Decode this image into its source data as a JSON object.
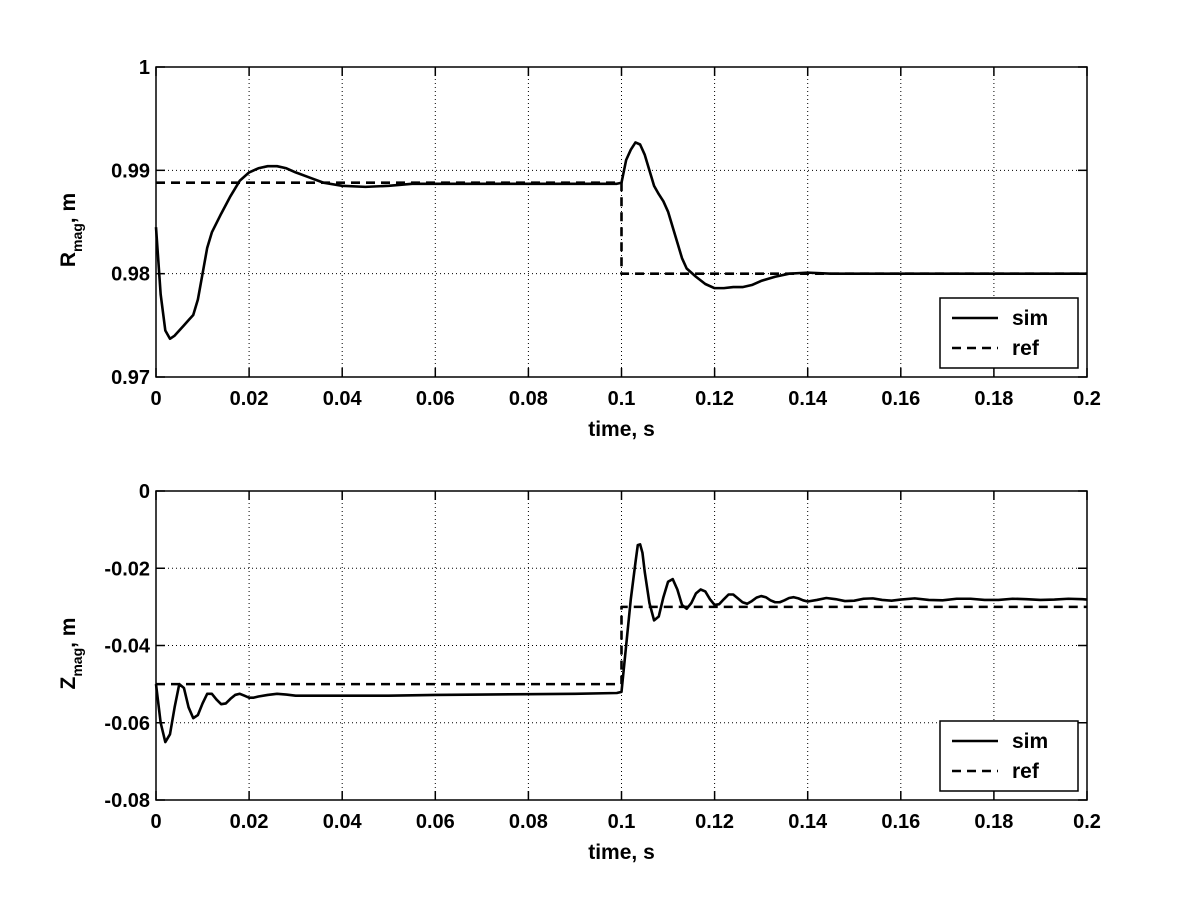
{
  "chart_data": [
    {
      "type": "line",
      "xlabel": "time, s",
      "ylabel": {
        "main": "R",
        "sub": "mag",
        "unit": ", m"
      },
      "xlim": [
        0,
        0.2
      ],
      "ylim": [
        0.97,
        1.0
      ],
      "xticks": [
        0,
        0.02,
        0.04,
        0.06,
        0.08,
        0.1,
        0.12,
        0.14,
        0.16,
        0.18,
        0.2
      ],
      "xtick_labels": [
        "0",
        "0.02",
        "0.04",
        "0.06",
        "0.08",
        "0.1",
        "0.12",
        "0.14",
        "0.16",
        "0.18",
        "0.2"
      ],
      "yticks": [
        0.97,
        0.98,
        0.99,
        1.0
      ],
      "ytick_labels": [
        "0.97",
        "0.98",
        "0.99",
        "1"
      ],
      "grid": true,
      "legend_position": "bottom-right",
      "series": [
        {
          "name": "sim",
          "style": "solid",
          "points": [
            [
              0,
              0.9845
            ],
            [
              0.001,
              0.978
            ],
            [
              0.002,
              0.9745
            ],
            [
              0.003,
              0.9737
            ],
            [
              0.004,
              0.974
            ],
            [
              0.005,
              0.9745
            ],
            [
              0.006,
              0.975
            ],
            [
              0.007,
              0.9755
            ],
            [
              0.008,
              0.976
            ],
            [
              0.009,
              0.9775
            ],
            [
              0.01,
              0.98
            ],
            [
              0.011,
              0.9825
            ],
            [
              0.012,
              0.984
            ],
            [
              0.014,
              0.9858
            ],
            [
              0.016,
              0.9875
            ],
            [
              0.018,
              0.989
            ],
            [
              0.02,
              0.9898
            ],
            [
              0.022,
              0.9902
            ],
            [
              0.024,
              0.9904
            ],
            [
              0.026,
              0.9904
            ],
            [
              0.028,
              0.9902
            ],
            [
              0.03,
              0.9898
            ],
            [
              0.033,
              0.9893
            ],
            [
              0.036,
              0.9888
            ],
            [
              0.04,
              0.9885
            ],
            [
              0.045,
              0.9884
            ],
            [
              0.05,
              0.9885
            ],
            [
              0.055,
              0.9887
            ],
            [
              0.06,
              0.9887
            ],
            [
              0.07,
              0.9887
            ],
            [
              0.08,
              0.9887
            ],
            [
              0.09,
              0.9887
            ],
            [
              0.099,
              0.9887
            ],
            [
              0.1,
              0.9888
            ],
            [
              0.101,
              0.991
            ],
            [
              0.102,
              0.992
            ],
            [
              0.103,
              0.9927
            ],
            [
              0.104,
              0.9925
            ],
            [
              0.105,
              0.9915
            ],
            [
              0.106,
              0.99
            ],
            [
              0.107,
              0.9885
            ],
            [
              0.108,
              0.9877
            ],
            [
              0.109,
              0.987
            ],
            [
              0.11,
              0.986
            ],
            [
              0.111,
              0.9845
            ],
            [
              0.112,
              0.983
            ],
            [
              0.113,
              0.9815
            ],
            [
              0.114,
              0.9805
            ],
            [
              0.116,
              0.9797
            ],
            [
              0.118,
              0.979
            ],
            [
              0.12,
              0.9786
            ],
            [
              0.122,
              0.9786
            ],
            [
              0.124,
              0.9787
            ],
            [
              0.126,
              0.9787
            ],
            [
              0.128,
              0.9789
            ],
            [
              0.13,
              0.9793
            ],
            [
              0.133,
              0.9797
            ],
            [
              0.136,
              0.98
            ],
            [
              0.14,
              0.9801
            ],
            [
              0.145,
              0.98
            ],
            [
              0.15,
              0.98
            ],
            [
              0.16,
              0.98
            ],
            [
              0.17,
              0.98
            ],
            [
              0.18,
              0.98
            ],
            [
              0.19,
              0.98
            ],
            [
              0.2,
              0.98
            ]
          ]
        },
        {
          "name": "ref",
          "style": "dashed",
          "points": [
            [
              0,
              0.9888
            ],
            [
              0.1,
              0.9888
            ],
            [
              0.1,
              0.98
            ],
            [
              0.2,
              0.98
            ]
          ]
        }
      ]
    },
    {
      "type": "line",
      "xlabel": "time, s",
      "ylabel": {
        "main": "Z",
        "sub": "mag",
        "unit": ", m"
      },
      "xlim": [
        0,
        0.2
      ],
      "ylim": [
        -0.08,
        0
      ],
      "xticks": [
        0,
        0.02,
        0.04,
        0.06,
        0.08,
        0.1,
        0.12,
        0.14,
        0.16,
        0.18,
        0.2
      ],
      "xtick_labels": [
        "0",
        "0.02",
        "0.04",
        "0.06",
        "0.08",
        "0.1",
        "0.12",
        "0.14",
        "0.16",
        "0.18",
        "0.2"
      ],
      "yticks": [
        -0.08,
        -0.06,
        -0.04,
        -0.02,
        0
      ],
      "ytick_labels": [
        "-0.08",
        "-0.06",
        "-0.04",
        "-0.02",
        "0"
      ],
      "grid": true,
      "legend_position": "bottom-right",
      "series": [
        {
          "name": "sim",
          "style": "solid",
          "points": [
            [
              0,
              -0.05
            ],
            [
              0.001,
              -0.06
            ],
            [
              0.002,
              -0.065
            ],
            [
              0.003,
              -0.063
            ],
            [
              0.004,
              -0.056
            ],
            [
              0.005,
              -0.05
            ],
            [
              0.006,
              -0.051
            ],
            [
              0.007,
              -0.056
            ],
            [
              0.008,
              -0.0588
            ],
            [
              0.009,
              -0.058
            ],
            [
              0.01,
              -0.055
            ],
            [
              0.011,
              -0.0525
            ],
            [
              0.012,
              -0.0525
            ],
            [
              0.013,
              -0.054
            ],
            [
              0.014,
              -0.0552
            ],
            [
              0.015,
              -0.055
            ],
            [
              0.016,
              -0.0538
            ],
            [
              0.017,
              -0.0528
            ],
            [
              0.018,
              -0.0525
            ],
            [
              0.019,
              -0.053
            ],
            [
              0.02,
              -0.0535
            ],
            [
              0.021,
              -0.0535
            ],
            [
              0.022,
              -0.0532
            ],
            [
              0.024,
              -0.0528
            ],
            [
              0.026,
              -0.0525
            ],
            [
              0.028,
              -0.0527
            ],
            [
              0.03,
              -0.053
            ],
            [
              0.035,
              -0.053
            ],
            [
              0.04,
              -0.053
            ],
            [
              0.05,
              -0.053
            ],
            [
              0.06,
              -0.0528
            ],
            [
              0.07,
              -0.0527
            ],
            [
              0.08,
              -0.0526
            ],
            [
              0.09,
              -0.0525
            ],
            [
              0.099,
              -0.0523
            ],
            [
              0.1,
              -0.052
            ],
            [
              0.101,
              -0.04
            ],
            [
              0.102,
              -0.028
            ],
            [
              0.103,
              -0.0185
            ],
            [
              0.1035,
              -0.014
            ],
            [
              0.104,
              -0.0138
            ],
            [
              0.1045,
              -0.016
            ],
            [
              0.105,
              -0.021
            ],
            [
              0.106,
              -0.029
            ],
            [
              0.107,
              -0.0335
            ],
            [
              0.108,
              -0.0325
            ],
            [
              0.109,
              -0.0275
            ],
            [
              0.11,
              -0.0235
            ],
            [
              0.111,
              -0.0228
            ],
            [
              0.112,
              -0.0255
            ],
            [
              0.113,
              -0.0295
            ],
            [
              0.114,
              -0.0305
            ],
            [
              0.115,
              -0.029
            ],
            [
              0.116,
              -0.0265
            ],
            [
              0.117,
              -0.0255
            ],
            [
              0.118,
              -0.026
            ],
            [
              0.119,
              -0.028
            ],
            [
              0.12,
              -0.0295
            ],
            [
              0.121,
              -0.0293
            ],
            [
              0.122,
              -0.028
            ],
            [
              0.123,
              -0.0268
            ],
            [
              0.124,
              -0.0268
            ],
            [
              0.125,
              -0.0278
            ],
            [
              0.126,
              -0.0288
            ],
            [
              0.127,
              -0.0292
            ],
            [
              0.128,
              -0.0285
            ],
            [
              0.129,
              -0.0276
            ],
            [
              0.13,
              -0.0272
            ],
            [
              0.131,
              -0.0275
            ],
            [
              0.132,
              -0.0283
            ],
            [
              0.133,
              -0.0288
            ],
            [
              0.134,
              -0.0288
            ],
            [
              0.135,
              -0.0283
            ],
            [
              0.136,
              -0.0277
            ],
            [
              0.137,
              -0.0275
            ],
            [
              0.138,
              -0.0278
            ],
            [
              0.139,
              -0.0283
            ],
            [
              0.14,
              -0.0286
            ],
            [
              0.142,
              -0.0282
            ],
            [
              0.144,
              -0.0277
            ],
            [
              0.146,
              -0.028
            ],
            [
              0.148,
              -0.0285
            ],
            [
              0.15,
              -0.0284
            ],
            [
              0.152,
              -0.0279
            ],
            [
              0.154,
              -0.0278
            ],
            [
              0.156,
              -0.0282
            ],
            [
              0.158,
              -0.0284
            ],
            [
              0.16,
              -0.0281
            ],
            [
              0.163,
              -0.0278
            ],
            [
              0.166,
              -0.0282
            ],
            [
              0.169,
              -0.0283
            ],
            [
              0.172,
              -0.0279
            ],
            [
              0.175,
              -0.0279
            ],
            [
              0.178,
              -0.0282
            ],
            [
              0.181,
              -0.0282
            ],
            [
              0.184,
              -0.0279
            ],
            [
              0.187,
              -0.028
            ],
            [
              0.19,
              -0.0282
            ],
            [
              0.193,
              -0.0281
            ],
            [
              0.196,
              -0.0279
            ],
            [
              0.199,
              -0.028
            ],
            [
              0.2,
              -0.0281
            ]
          ]
        },
        {
          "name": "ref",
          "style": "dashed",
          "points": [
            [
              0,
              -0.05
            ],
            [
              0.1,
              -0.05
            ],
            [
              0.1,
              -0.03
            ],
            [
              0.2,
              -0.03
            ]
          ]
        }
      ]
    }
  ]
}
